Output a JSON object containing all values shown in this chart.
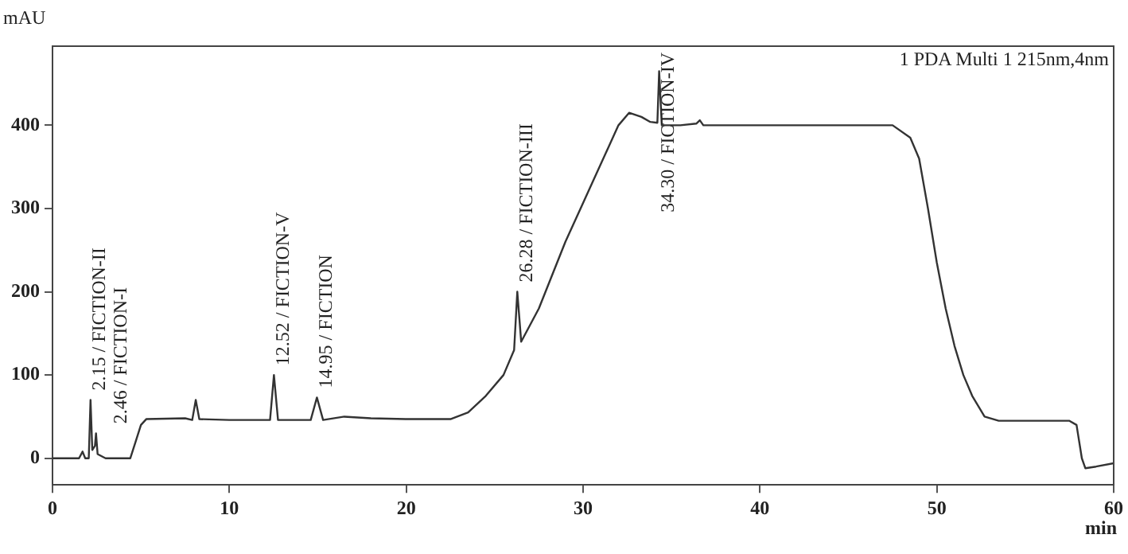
{
  "chart_data": {
    "type": "line",
    "xlabel": "min",
    "ylabel": "mAU",
    "x": [
      0,
      1.5,
      1.7,
      1.85,
      2.05,
      2.15,
      2.25,
      2.4,
      2.46,
      2.55,
      3,
      4.4,
      4.7,
      5.0,
      5.3,
      7.5,
      7.9,
      8.1,
      8.3,
      10,
      12.3,
      12.52,
      12.75,
      14.6,
      14.95,
      15.3,
      16.5,
      18,
      20,
      22.5,
      23.5,
      24.5,
      25.5,
      26.1,
      26.28,
      26.5,
      27.5,
      29,
      30.5,
      32,
      32.6,
      33.3,
      33.8,
      34.2,
      34.3,
      34.45,
      35.5,
      36.4,
      36.6,
      36.8,
      40,
      47.5,
      48.5,
      49,
      49.5,
      50,
      50.5,
      51,
      51.5,
      52,
      52.7,
      53.5,
      57.5,
      57.9,
      58.2,
      58.4,
      59,
      60
    ],
    "series": [
      {
        "color": "#333333",
        "values": [
          0,
          0,
          8,
          0,
          0,
          70,
          10,
          15,
          30,
          5,
          0,
          0,
          20,
          40,
          47,
          48,
          46,
          70,
          47,
          46,
          46,
          100,
          46,
          46,
          73,
          46,
          50,
          48,
          47,
          47,
          55,
          75,
          100,
          130,
          200,
          140,
          180,
          260,
          330,
          400,
          415,
          410,
          404,
          403,
          465,
          400,
          400,
          402,
          406,
          400,
          400,
          400,
          385,
          360,
          300,
          235,
          180,
          135,
          100,
          75,
          50,
          45,
          45,
          40,
          0,
          -12,
          -10,
          -6
        ]
      }
    ],
    "xlim": [
      0,
      60
    ],
    "xticks": [
      0,
      10,
      20,
      30,
      40,
      50,
      60
    ],
    "ylim": [
      -32,
      495
    ],
    "yticks": [
      0,
      100,
      200,
      300,
      400
    ],
    "grid": false,
    "legend": false,
    "marker": "none",
    "line_style": "solid",
    "annotations": [
      "1 PDA Multi 1 215nm,4nm",
      {
        "text": "2.15 / FICTION-II",
        "x": 2.15,
        "y": 70
      },
      {
        "text": "2.46 / FICTION-I",
        "x": 2.46,
        "y": 30
      },
      {
        "text": "12.52 / FICTION-V",
        "x": 12.52,
        "y": 100
      },
      {
        "text": "14.95 / FICTION",
        "x": 14.95,
        "y": 73
      },
      {
        "text": "26.28 / FICTION-III",
        "x": 26.28,
        "y": 200
      },
      {
        "text": "34.30 / FICTION-IV",
        "x": 34.3,
        "y": 465
      }
    ]
  }
}
